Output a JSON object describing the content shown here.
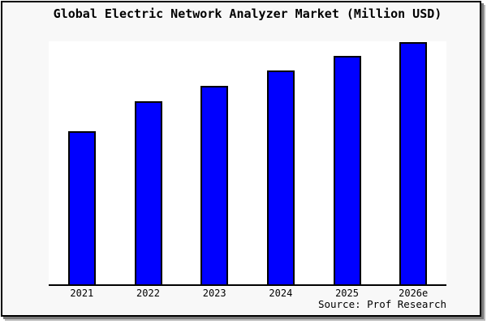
{
  "page": {
    "background_color": "#f8f8f8",
    "plot_background_color": "#ffffff",
    "frame_border_color": "#000000",
    "shadow_color": "#999999"
  },
  "title": "Global Electric Network Analyzer Market (Million USD)",
  "source": "Source: Prof Research",
  "chart_data": {
    "type": "bar",
    "title": "Global Electric Network Analyzer Market (Million USD)",
    "categories": [
      "2021",
      "2022",
      "2023",
      "2024",
      "2025",
      "2026e"
    ],
    "values": [
      63.2,
      75.6,
      81.9,
      88.3,
      94.3,
      100
    ],
    "units": "relative bar height, % of 2026e bar (no y-axis scale shown in image)",
    "xlabel": "",
    "ylabel": "Million USD",
    "ylim": [
      0,
      100
    ],
    "grid": false,
    "legend": false,
    "bar_color": "#0000ff",
    "bar_border_color": "#000000",
    "annotation": "Source: Prof Research"
  }
}
